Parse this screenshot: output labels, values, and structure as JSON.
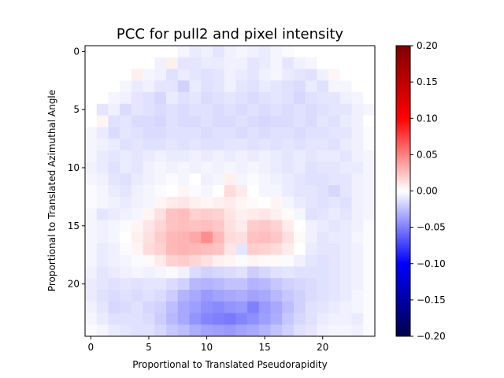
{
  "chart_data": {
    "type": "heatmap",
    "title": "PCC for pull2 and pixel intensity",
    "xlabel": "Proportional to Translated Pseudorapidity",
    "ylabel": "Proportional to Translated Azimuthal Angle",
    "xlim": [
      -0.5,
      24.5
    ],
    "ylim": [
      24.5,
      -0.5
    ],
    "xticks": [
      0,
      5,
      10,
      15,
      20
    ],
    "yticks": [
      0,
      5,
      10,
      15,
      20
    ],
    "colorbar": {
      "range": [
        -0.2,
        0.2
      ],
      "ticks": [
        0.2,
        0.15,
        0.1,
        0.05,
        0.0,
        -0.05,
        -0.1,
        -0.15,
        -0.2
      ],
      "tick_labels": [
        "0.20",
        "0.15",
        "0.10",
        "0.05",
        "0.00",
        "−0.05",
        "−0.10",
        "−0.15",
        "−0.20"
      ],
      "colormap": "seismic",
      "colormap_stops": [
        "#00004c",
        "#0000ff",
        "#ffffff",
        "#ff0000",
        "#800000"
      ]
    },
    "grid": false,
    "rows": 25,
    "cols": 25,
    "values": [
      [
        0,
        0,
        0,
        0,
        0,
        0,
        0,
        0,
        -0.004,
        -0.008,
        -0.006,
        -0.01,
        -0.006,
        -0.004,
        -0.006,
        -0.008,
        -0.004,
        -0.002,
        0,
        0,
        0,
        0,
        0,
        0,
        0
      ],
      [
        0,
        0,
        0,
        0,
        0,
        0,
        -0.006,
        0.006,
        -0.01,
        -0.01,
        -0.008,
        -0.008,
        -0.006,
        -0.006,
        -0.01,
        -0.008,
        -0.004,
        -0.01,
        -0.006,
        -0.004,
        0,
        0,
        0,
        0,
        0
      ],
      [
        0,
        0,
        0,
        0,
        0.006,
        -0.004,
        -0.006,
        -0.012,
        -0.008,
        -0.01,
        -0.012,
        -0.01,
        -0.006,
        -0.008,
        -0.01,
        -0.006,
        -0.004,
        -0.008,
        -0.01,
        -0.012,
        -0.006,
        0.004,
        0,
        0,
        0
      ],
      [
        0,
        0,
        0,
        -0.004,
        -0.008,
        -0.006,
        -0.01,
        -0.01,
        -0.018,
        -0.008,
        -0.012,
        -0.01,
        -0.006,
        -0.01,
        -0.012,
        -0.008,
        -0.01,
        -0.012,
        -0.014,
        -0.008,
        -0.012,
        -0.004,
        -0.004,
        0,
        0
      ],
      [
        0,
        0,
        -0.004,
        -0.006,
        -0.01,
        -0.012,
        -0.016,
        -0.008,
        -0.012,
        -0.01,
        -0.014,
        -0.012,
        -0.01,
        -0.012,
        -0.014,
        -0.012,
        -0.01,
        -0.012,
        -0.016,
        -0.012,
        -0.01,
        -0.01,
        -0.006,
        -0.004,
        0
      ],
      [
        0,
        -0.01,
        -0.006,
        -0.014,
        -0.01,
        -0.012,
        -0.014,
        -0.012,
        -0.014,
        -0.012,
        -0.012,
        -0.014,
        -0.012,
        -0.014,
        -0.012,
        -0.014,
        -0.012,
        -0.014,
        -0.012,
        -0.014,
        -0.012,
        -0.01,
        -0.01,
        -0.006,
        -0.004
      ],
      [
        0,
        0.004,
        -0.012,
        -0.01,
        -0.014,
        -0.014,
        -0.016,
        -0.012,
        -0.014,
        -0.014,
        -0.012,
        -0.014,
        -0.014,
        -0.012,
        -0.014,
        -0.016,
        -0.014,
        -0.014,
        -0.012,
        -0.014,
        -0.01,
        -0.012,
        -0.008,
        -0.006,
        0
      ],
      [
        -0.004,
        -0.008,
        -0.014,
        -0.01,
        -0.012,
        -0.014,
        -0.014,
        -0.012,
        -0.012,
        -0.012,
        -0.014,
        -0.012,
        -0.012,
        -0.014,
        -0.012,
        -0.014,
        -0.012,
        -0.012,
        -0.014,
        -0.012,
        -0.012,
        -0.01,
        -0.01,
        -0.006,
        -0.002
      ],
      [
        -0.004,
        -0.006,
        -0.008,
        -0.012,
        -0.01,
        -0.012,
        -0.012,
        -0.01,
        -0.012,
        -0.01,
        -0.012,
        -0.012,
        -0.01,
        -0.01,
        -0.012,
        -0.01,
        -0.012,
        -0.01,
        -0.012,
        -0.01,
        -0.01,
        -0.012,
        -0.008,
        -0.006,
        -0.002
      ],
      [
        -0.004,
        -0.008,
        -0.01,
        -0.008,
        -0.01,
        -0.008,
        -0.006,
        -0.008,
        -0.008,
        -0.006,
        -0.008,
        -0.006,
        -0.008,
        -0.006,
        -0.008,
        -0.006,
        -0.008,
        -0.01,
        -0.008,
        -0.01,
        -0.008,
        -0.008,
        -0.01,
        -0.006,
        -0.004
      ],
      [
        -0.006,
        -0.008,
        -0.012,
        -0.008,
        -0.01,
        -0.006,
        -0.004,
        -0.006,
        -0.004,
        -0.006,
        -0.004,
        -0.006,
        -0.004,
        -0.006,
        -0.004,
        -0.006,
        -0.008,
        -0.01,
        -0.008,
        -0.012,
        -0.01,
        -0.01,
        -0.008,
        -0.008,
        -0.004
      ],
      [
        -0.004,
        -0.006,
        -0.01,
        -0.012,
        -0.008,
        -0.006,
        -0.004,
        -0.002,
        -0.004,
        0,
        -0.006,
        -0.004,
        0.006,
        -0.004,
        -0.002,
        -0.004,
        -0.006,
        -0.008,
        -0.01,
        -0.012,
        -0.012,
        -0.01,
        -0.01,
        -0.006,
        -0.004
      ],
      [
        -0.002,
        -0.004,
        -0.008,
        -0.01,
        -0.006,
        -0.004,
        -0.002,
        0,
        0.004,
        -0.002,
        -0.004,
        0,
        0.014,
        0.008,
        0,
        -0.004,
        -0.004,
        -0.008,
        -0.01,
        -0.01,
        -0.012,
        -0.016,
        -0.01,
        -0.006,
        -0.004
      ],
      [
        -0.002,
        -0.004,
        -0.006,
        -0.008,
        -0.006,
        -0.004,
        0.004,
        0.008,
        0.01,
        0.006,
        0.004,
        0.006,
        0.008,
        0.004,
        0.002,
        0,
        0.004,
        -0.004,
        -0.008,
        -0.01,
        -0.012,
        -0.01,
        -0.012,
        -0.006,
        -0.004
      ],
      [
        -0.004,
        -0.01,
        -0.008,
        -0.006,
        -0.004,
        0.004,
        0.012,
        0.024,
        0.026,
        0.018,
        0.02,
        0.018,
        0.01,
        0.006,
        0.008,
        0.01,
        0.006,
        0.002,
        -0.004,
        -0.012,
        -0.01,
        -0.008,
        -0.01,
        -0.006,
        -0.004
      ],
      [
        -0.004,
        -0.006,
        -0.004,
        -0.002,
        0.004,
        0.01,
        0.016,
        0.024,
        0.026,
        0.024,
        0.026,
        0.022,
        0.012,
        0.008,
        0.02,
        0.022,
        0.018,
        0.008,
        0,
        -0.006,
        -0.008,
        -0.01,
        -0.008,
        -0.006,
        -0.002
      ],
      [
        -0.004,
        -0.006,
        -0.004,
        0,
        0.006,
        0.012,
        0.02,
        0.028,
        0.03,
        0.034,
        0.044,
        0.028,
        0.014,
        0.012,
        0.024,
        0.026,
        0.022,
        0.012,
        0.002,
        -0.006,
        -0.01,
        -0.008,
        -0.008,
        -0.004,
        -0.002
      ],
      [
        -0.004,
        -0.008,
        -0.006,
        -0.002,
        0.004,
        0.014,
        0.018,
        0.028,
        0.03,
        0.028,
        0.026,
        0.024,
        0.01,
        -0.01,
        0.02,
        0.018,
        0.014,
        0.008,
        0,
        -0.008,
        -0.01,
        -0.01,
        -0.008,
        -0.006,
        -0.002
      ],
      [
        -0.004,
        -0.008,
        -0.006,
        -0.004,
        -0.002,
        0.002,
        0.008,
        0.018,
        0.02,
        0.016,
        0.012,
        0.006,
        0.004,
        -0.002,
        0.004,
        0.002,
        0.002,
        -0.002,
        -0.006,
        -0.01,
        -0.012,
        -0.01,
        -0.008,
        -0.006,
        -0.002
      ],
      [
        -0.006,
        -0.01,
        -0.008,
        -0.006,
        -0.004,
        -0.006,
        -0.004,
        -0.002,
        -0.006,
        -0.014,
        -0.018,
        -0.016,
        -0.014,
        -0.012,
        -0.02,
        -0.016,
        -0.012,
        -0.01,
        -0.012,
        -0.012,
        -0.012,
        -0.01,
        -0.008,
        -0.006,
        -0.002
      ],
      [
        -0.008,
        -0.01,
        -0.012,
        -0.01,
        -0.012,
        -0.01,
        -0.01,
        -0.014,
        -0.018,
        -0.028,
        -0.03,
        -0.028,
        -0.024,
        -0.024,
        -0.03,
        -0.028,
        -0.022,
        -0.018,
        -0.016,
        -0.014,
        -0.012,
        -0.01,
        -0.008,
        -0.006,
        -0.002
      ],
      [
        -0.008,
        -0.012,
        -0.014,
        -0.012,
        -0.014,
        -0.012,
        -0.014,
        -0.02,
        -0.03,
        -0.034,
        -0.04,
        -0.036,
        -0.034,
        -0.032,
        -0.036,
        -0.034,
        -0.028,
        -0.022,
        -0.018,
        -0.014,
        -0.012,
        -0.01,
        -0.008,
        -0.004,
        -0.002
      ],
      [
        -0.006,
        -0.01,
        -0.016,
        -0.014,
        -0.012,
        -0.016,
        -0.018,
        -0.026,
        -0.034,
        -0.038,
        -0.044,
        -0.046,
        -0.042,
        -0.04,
        -0.05,
        -0.04,
        -0.034,
        -0.026,
        -0.018,
        -0.012,
        -0.01,
        -0.008,
        -0.006,
        -0.004,
        -0.002
      ],
      [
        -0.004,
        -0.008,
        -0.012,
        -0.012,
        -0.012,
        -0.014,
        -0.02,
        -0.028,
        -0.034,
        -0.042,
        -0.048,
        -0.05,
        -0.052,
        -0.048,
        -0.044,
        -0.038,
        -0.032,
        -0.022,
        -0.016,
        -0.012,
        -0.008,
        -0.006,
        -0.006,
        -0.008,
        -0.002
      ],
      [
        -0.002,
        -0.004,
        -0.008,
        -0.01,
        -0.012,
        -0.012,
        -0.016,
        -0.022,
        -0.026,
        -0.032,
        -0.036,
        -0.038,
        -0.04,
        -0.036,
        -0.034,
        -0.03,
        -0.024,
        -0.018,
        -0.012,
        -0.01,
        -0.006,
        -0.004,
        -0.004,
        -0.006,
        -0.002
      ]
    ]
  }
}
